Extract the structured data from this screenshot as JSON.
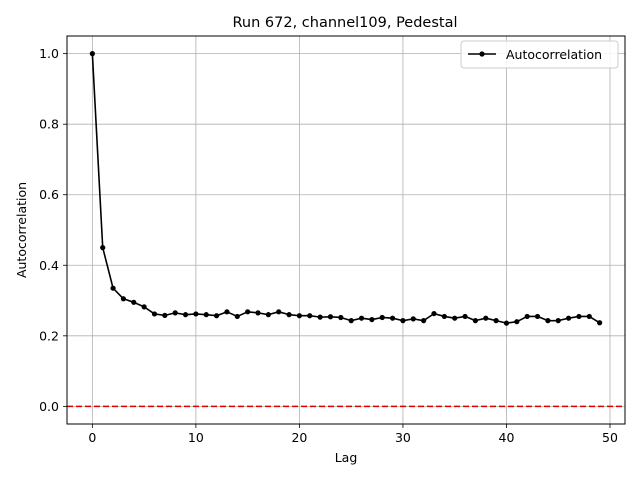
{
  "chart_data": {
    "type": "line",
    "title": "Run 672, channel109, Pedestal",
    "xlabel": "Lag",
    "ylabel": "Autocorrelation",
    "xlim": [
      -2.45,
      51.45
    ],
    "ylim": [
      -0.05,
      1.05
    ],
    "xticks": [
      0,
      10,
      20,
      30,
      40,
      50
    ],
    "xtick_labels": [
      "0",
      "10",
      "20",
      "30",
      "40",
      "50"
    ],
    "yticks": [
      0.0,
      0.2,
      0.4,
      0.6,
      0.8,
      1.0
    ],
    "ytick_labels": [
      "0.0",
      "0.2",
      "0.4",
      "0.6",
      "0.8",
      "1.0"
    ],
    "grid": true,
    "legend_position": "upper right",
    "series": [
      {
        "name": "Autocorrelation",
        "color": "#000000",
        "marker": "circle",
        "x": [
          0,
          1,
          2,
          3,
          4,
          5,
          6,
          7,
          8,
          9,
          10,
          11,
          12,
          13,
          14,
          15,
          16,
          17,
          18,
          19,
          20,
          21,
          22,
          23,
          24,
          25,
          26,
          27,
          28,
          29,
          30,
          31,
          32,
          33,
          34,
          35,
          36,
          37,
          38,
          39,
          40,
          41,
          42,
          43,
          44,
          45,
          46,
          47,
          48,
          49
        ],
        "y": [
          1.0,
          0.45,
          0.335,
          0.305,
          0.295,
          0.282,
          0.262,
          0.258,
          0.265,
          0.26,
          0.262,
          0.26,
          0.257,
          0.268,
          0.255,
          0.268,
          0.265,
          0.26,
          0.268,
          0.26,
          0.257,
          0.257,
          0.253,
          0.254,
          0.252,
          0.243,
          0.25,
          0.246,
          0.252,
          0.25,
          0.243,
          0.248,
          0.243,
          0.263,
          0.255,
          0.25,
          0.255,
          0.243,
          0.25,
          0.243,
          0.236,
          0.24,
          0.255,
          0.255,
          0.243,
          0.243,
          0.25,
          0.255,
          0.255,
          0.237
        ]
      }
    ],
    "reference_line": {
      "y": 0.0,
      "color": "#e00000",
      "style": "dashed"
    }
  }
}
